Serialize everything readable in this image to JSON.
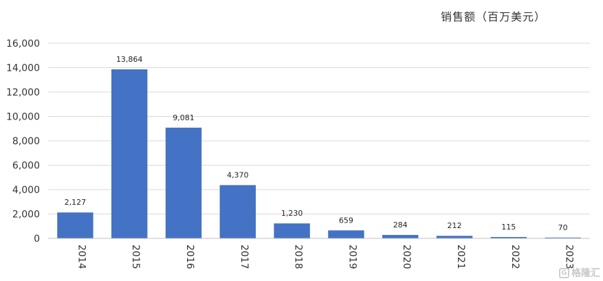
{
  "unit_label": "销售额（百万美元）",
  "watermark": "格隆汇",
  "colors": {
    "bar": "#4472C4",
    "grid": "#D9D9D9",
    "axis": "#BFBFBF"
  },
  "chart_data": {
    "type": "bar",
    "title": "",
    "xlabel": "",
    "ylabel": "",
    "ylim": [
      0,
      16000
    ],
    "yticks": [
      0,
      2000,
      4000,
      6000,
      8000,
      10000,
      12000,
      14000,
      16000
    ],
    "ytick_labels": [
      "0",
      "2,000",
      "4,000",
      "6,000",
      "8,000",
      "10,000",
      "12,000",
      "14,000",
      "16,000"
    ],
    "categories": [
      "2014",
      "2015",
      "2016",
      "2017",
      "2018",
      "2019",
      "2020",
      "2021",
      "2022",
      "2023"
    ],
    "values": [
      2127,
      13864,
      9081,
      4370,
      1230,
      659,
      284,
      212,
      115,
      70
    ],
    "value_labels": [
      "2,127",
      "13,864",
      "9,081",
      "4,370",
      "1,230",
      "659",
      "284",
      "212",
      "115",
      "70"
    ],
    "grid": true,
    "legend": "none"
  }
}
